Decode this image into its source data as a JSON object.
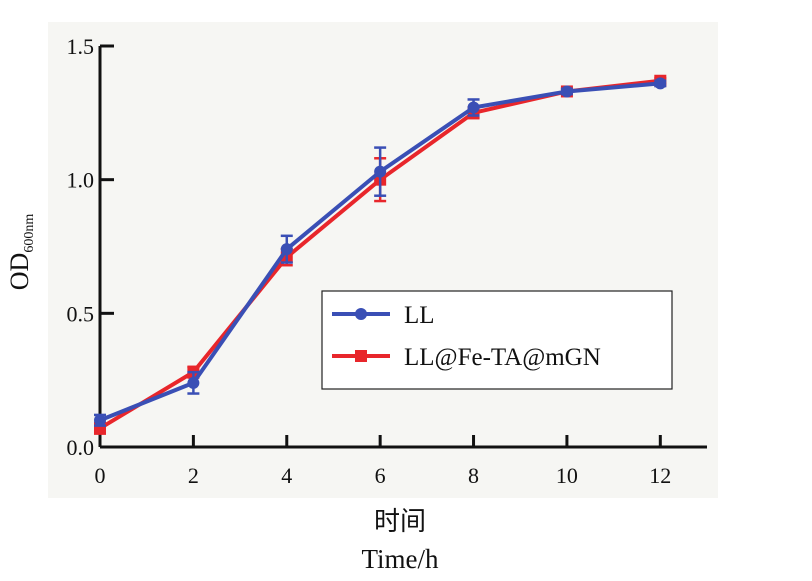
{
  "chart_data": {
    "type": "line",
    "x": [
      0,
      2,
      4,
      6,
      8,
      10,
      12
    ],
    "xticks": [
      "0",
      "2",
      "4",
      "6",
      "8",
      "10",
      "12"
    ],
    "yticks": [
      "0.0",
      "0.5",
      "1.0",
      "1.5"
    ],
    "xlim": [
      0,
      13
    ],
    "ylim": [
      0,
      1.5
    ],
    "xlabel_line1": "时间",
    "xlabel_line2": "Time/h",
    "ylabel_main": "OD",
    "ylabel_sub": "600nm",
    "legend_position": "center-right",
    "series": [
      {
        "name": "LL",
        "color": "#3a4fb5",
        "marker": "circle",
        "values": [
          0.1,
          0.24,
          0.74,
          1.03,
          1.27,
          1.33,
          1.36
        ],
        "errors": [
          0.02,
          0.04,
          0.05,
          0.09,
          0.03,
          0.01,
          0.01
        ]
      },
      {
        "name": "LL@Fe-TA@mGN",
        "color": "#e8262b",
        "marker": "square",
        "values": [
          0.07,
          0.28,
          0.71,
          1.0,
          1.25,
          1.33,
          1.37
        ],
        "errors": [
          0.02,
          0.02,
          0.03,
          0.08,
          0.02,
          0.01,
          0.01
        ]
      }
    ]
  }
}
